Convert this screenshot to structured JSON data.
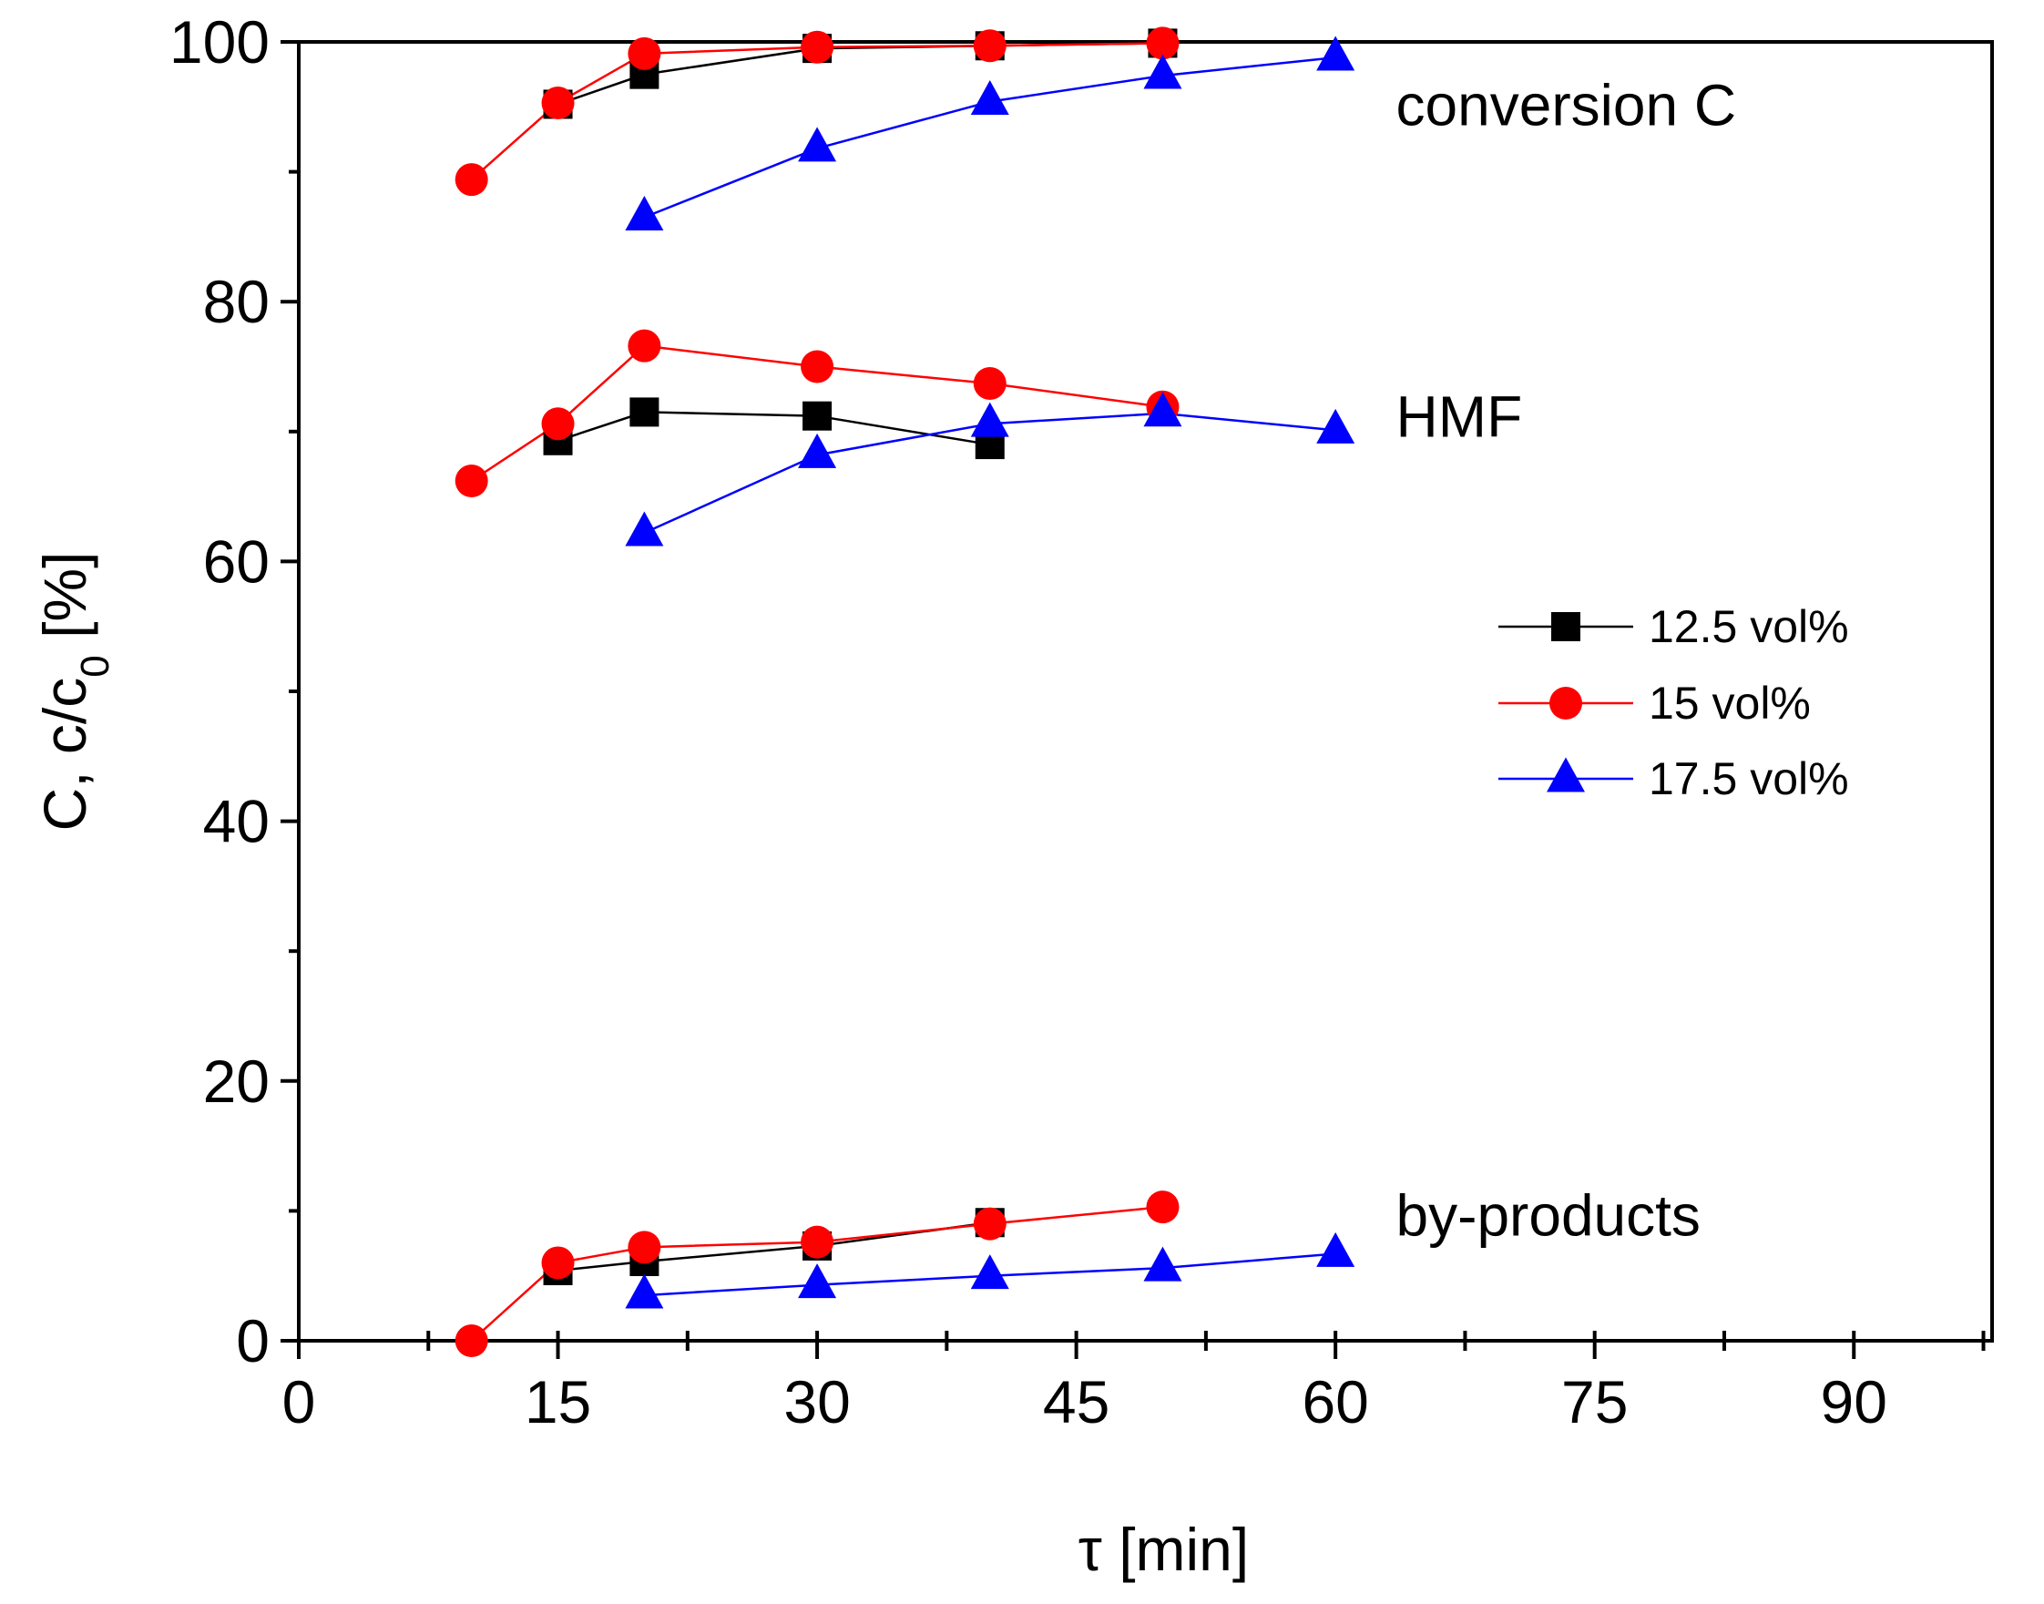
{
  "chart_data": {
    "type": "line",
    "title": "",
    "xlabel": "τ [min]",
    "ylabel": "C, c/c",
    "ylabel_subscript": "0",
    "ylabel_suffix": " [%]",
    "xlim": [
      0,
      98
    ],
    "ylim": [
      0,
      100
    ],
    "xticks": [
      0,
      15,
      30,
      45,
      60,
      75,
      90
    ],
    "xticks_minor": [
      7.5,
      22.5,
      37.5,
      52.5,
      67.5,
      82.5,
      97.5
    ],
    "yticks": [
      0,
      20,
      40,
      60,
      80,
      100
    ],
    "yticks_minor": [
      10,
      30,
      50,
      70,
      90
    ],
    "legend_position": "right-center",
    "series": [
      {
        "name": "12.5 vol%",
        "color": "#000000",
        "marker": "square",
        "groups": [
          {
            "label": "conversion C",
            "x": [
              15,
              20,
              30,
              40,
              50
            ],
            "y": [
              95.2,
              97.5,
              99.5,
              99.7,
              99.9
            ]
          },
          {
            "label": "HMF",
            "x": [
              15,
              20,
              30,
              40
            ],
            "y": [
              69.3,
              71.5,
              71.2,
              69.0
            ]
          },
          {
            "label": "by-products",
            "x": [
              15,
              20,
              30,
              40
            ],
            "y": [
              5.4,
              6.1,
              7.3,
              9.1
            ]
          }
        ]
      },
      {
        "name": "15 vol%",
        "color": "#ff0000",
        "marker": "circle",
        "groups": [
          {
            "label": "conversion C",
            "x": [
              10,
              15,
              20,
              30,
              40,
              50
            ],
            "y": [
              89.4,
              95.3,
              99.1,
              99.6,
              99.7,
              99.9
            ]
          },
          {
            "label": "HMF",
            "x": [
              10,
              15,
              20,
              30,
              40,
              50
            ],
            "y": [
              66.2,
              70.6,
              76.6,
              75.0,
              73.7,
              71.9
            ]
          },
          {
            "label": "by-products",
            "x": [
              10,
              15,
              20,
              30,
              40,
              50
            ],
            "y": [
              0.0,
              6.0,
              7.2,
              7.6,
              9.0,
              10.3
            ]
          }
        ]
      },
      {
        "name": "17.5 vol%",
        "color": "#0000ff",
        "marker": "triangle",
        "groups": [
          {
            "label": "conversion C",
            "x": [
              20,
              30,
              40,
              50,
              60
            ],
            "y": [
              86.5,
              91.8,
              95.4,
              97.4,
              98.8
            ]
          },
          {
            "label": "HMF",
            "x": [
              20,
              30,
              40,
              50,
              60
            ],
            "y": [
              62.2,
              68.2,
              70.6,
              71.4,
              70.1
            ]
          },
          {
            "label": "by-products",
            "x": [
              20,
              30,
              40,
              50,
              60
            ],
            "y": [
              3.5,
              4.3,
              5.0,
              5.6,
              6.7
            ]
          }
        ]
      }
    ],
    "annotations": [
      {
        "text": "conversion C",
        "x": 63.5,
        "y": 95
      },
      {
        "text": "HMF",
        "x": 63.5,
        "y": 71
      },
      {
        "text": "by-products",
        "x": 63.5,
        "y": 9.5
      }
    ]
  }
}
